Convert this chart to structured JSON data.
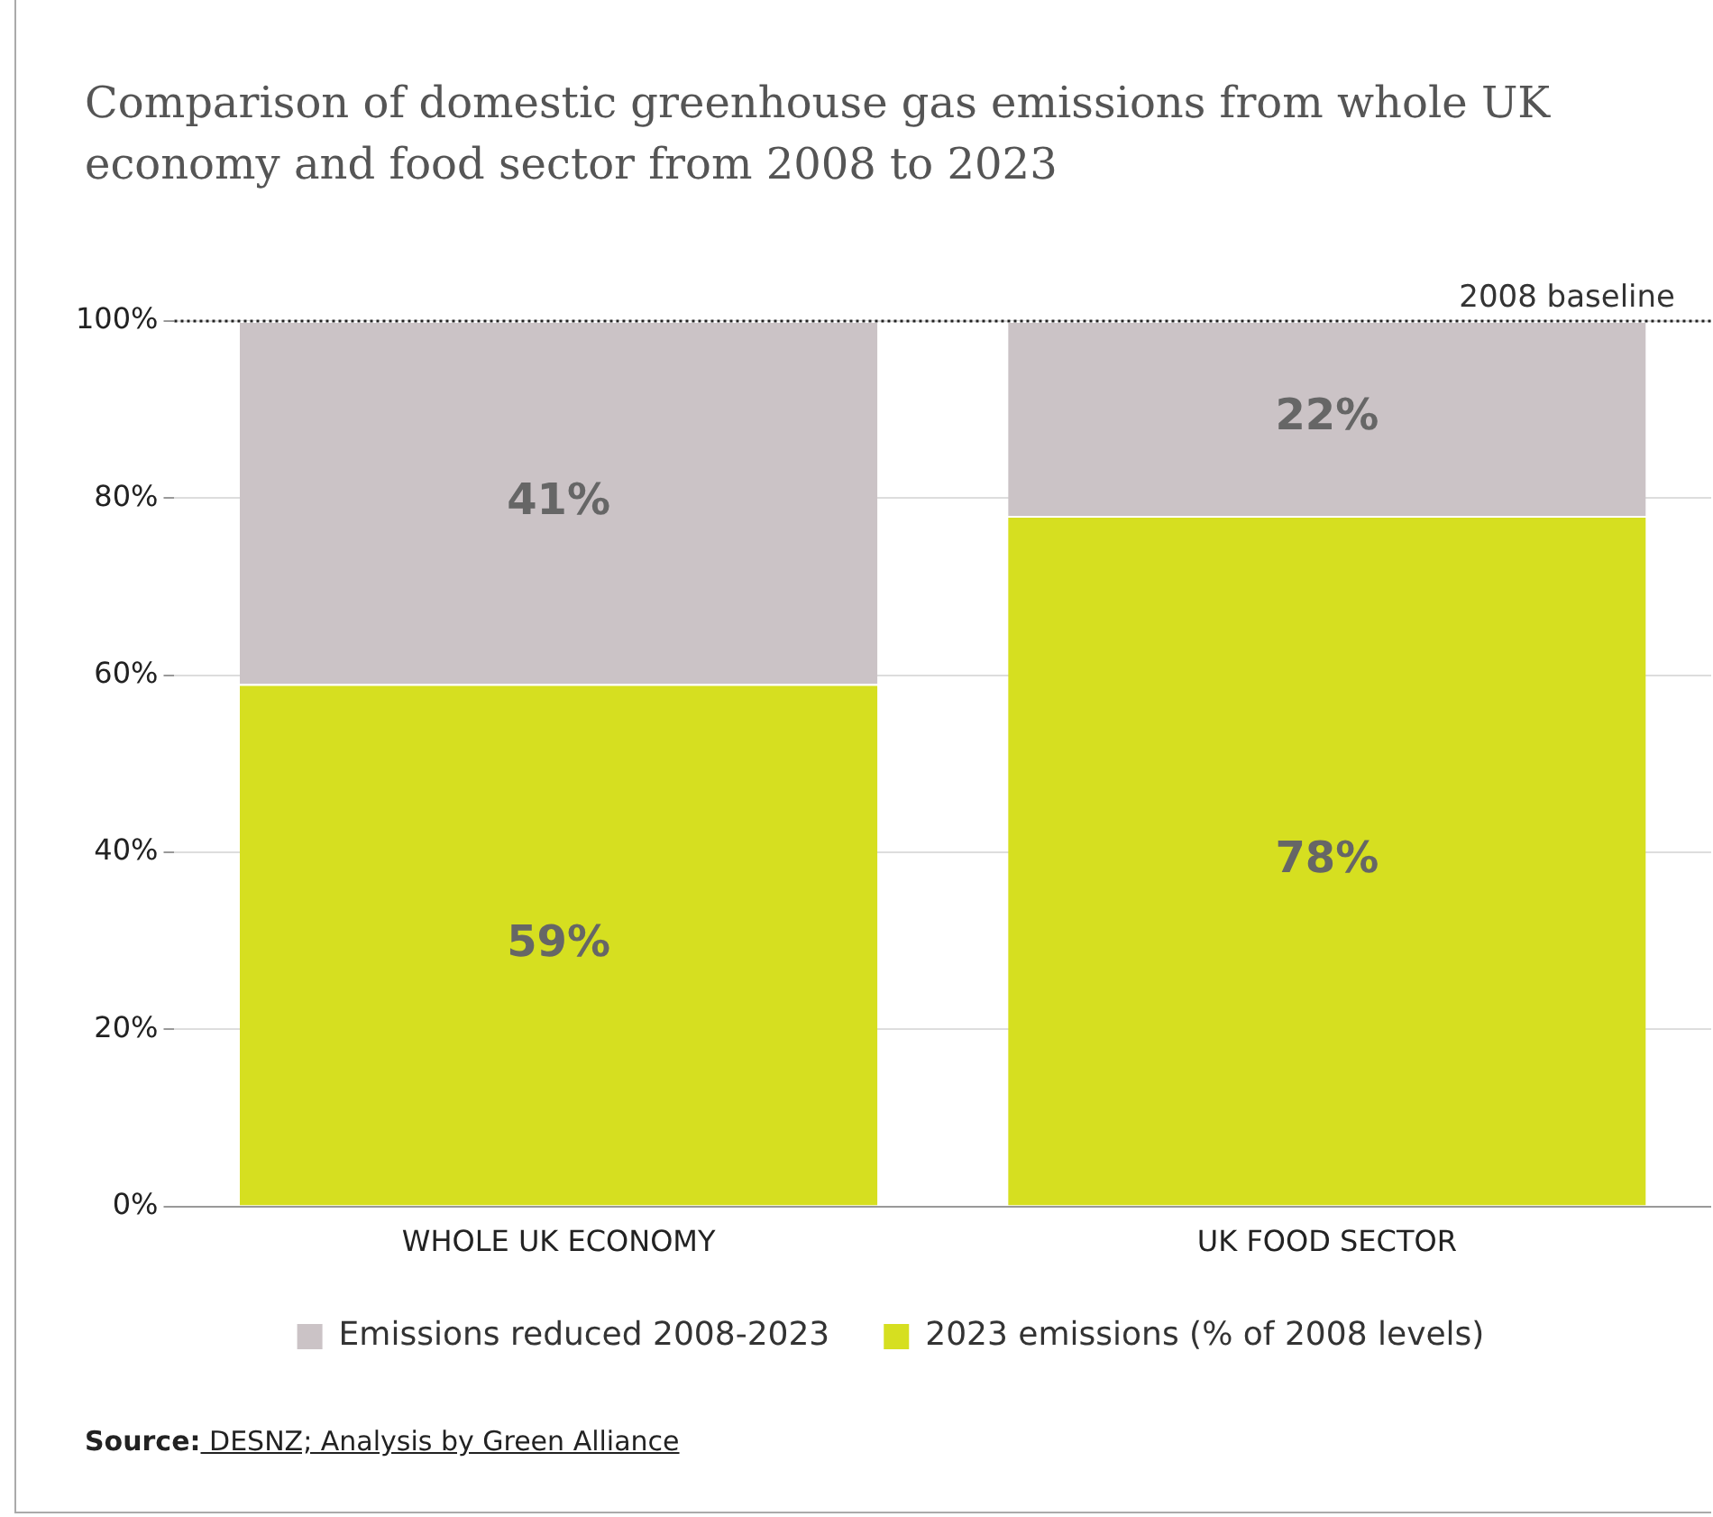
{
  "chart_data": {
    "type": "bar",
    "title": "Comparison of domestic greenhouse gas emissions from whole UK economy and food sector from 2008 to 2023",
    "categories": [
      "WHOLE UK ECONOMY",
      "UK FOOD SECTOR"
    ],
    "stacked": true,
    "series": [
      {
        "name": "2023 emissions (% of 2008 levels)",
        "color": "#d6df20",
        "values": [
          59,
          78
        ],
        "value_labels": [
          "59%",
          "78%"
        ]
      },
      {
        "name": "Emissions reduced 2008-2023",
        "color": "#cbc3c6",
        "values": [
          41,
          22
        ],
        "value_labels": [
          "41%",
          "22%"
        ]
      }
    ],
    "ylim": [
      0,
      100
    ],
    "yticks": [
      {
        "value": 0,
        "label": "0%"
      },
      {
        "value": 20,
        "label": "20%"
      },
      {
        "value": 40,
        "label": "40%"
      },
      {
        "value": 60,
        "label": "60%"
      },
      {
        "value": 80,
        "label": "80%"
      },
      {
        "value": 100,
        "label": "100%"
      }
    ],
    "grid": "y",
    "legend": "bottom",
    "ref_lines": [
      {
        "axis": "y",
        "value": 100,
        "label": "2008 baseline",
        "color": "#222222",
        "line_style": "dotted"
      }
    ],
    "annotations": [
      "Source: DESNZ; Analysis by Green Alliance"
    ]
  }
}
